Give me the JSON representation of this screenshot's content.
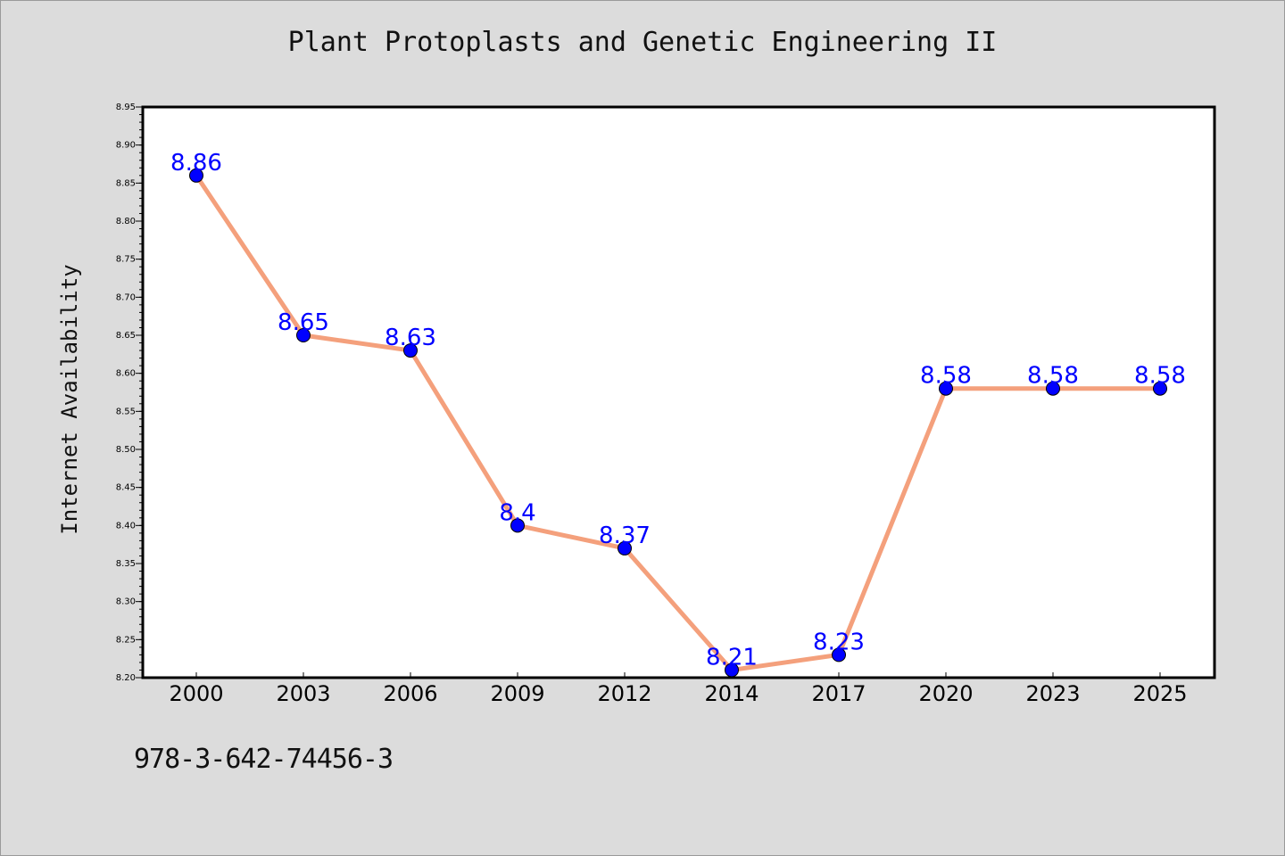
{
  "page": {
    "footer_code": "978-3-642-74456-3"
  },
  "colors": {
    "background": "#dcdcdc",
    "plot_background": "#ffffff",
    "line": "#f4a07c",
    "marker": "#0000ff",
    "data_label": "#0000ff"
  },
  "chart_data": {
    "type": "line",
    "title": "Plant Protoplasts and Genetic Engineering II",
    "xlabel": "",
    "ylabel": "Internet Availability",
    "categories": [
      "2000",
      "2003",
      "2006",
      "2009",
      "2012",
      "2014",
      "2017",
      "2020",
      "2023",
      "2025"
    ],
    "series": [
      {
        "values": [
          8.86,
          8.65,
          8.63,
          8.4,
          8.37,
          8.21,
          8.23,
          8.58,
          8.58,
          8.58
        ],
        "labels": [
          "8.86",
          "8.65",
          "8.63",
          "8.4",
          "8.37",
          "8.21",
          "8.23",
          "8.58",
          "8.58",
          "8.58"
        ]
      }
    ],
    "ylim": [
      8.2,
      8.95
    ],
    "yticks": [
      "8.20",
      "8.25",
      "8.30",
      "8.35",
      "8.40",
      "8.45",
      "8.50",
      "8.55",
      "8.60",
      "8.65",
      "8.70",
      "8.75",
      "8.80",
      "8.85",
      "8.90",
      "8.95"
    ],
    "grid": false,
    "legend": "none"
  }
}
